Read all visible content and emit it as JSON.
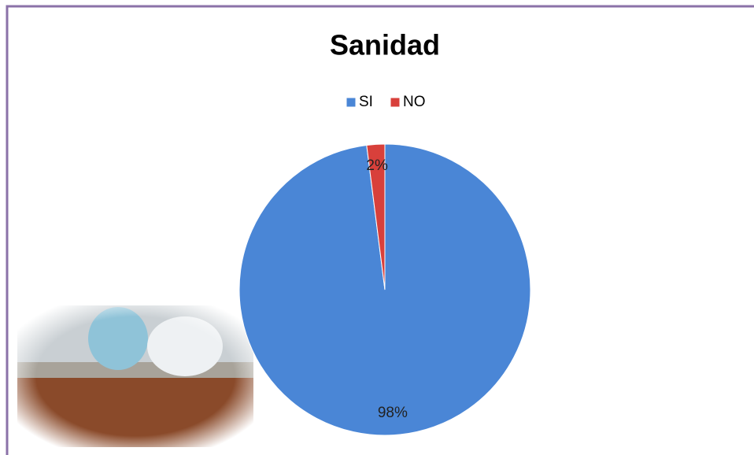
{
  "chart_data": {
    "type": "pie",
    "title": "Sanidad",
    "categories": [
      "SI",
      "NO"
    ],
    "values": [
      98,
      2
    ],
    "value_labels": [
      "98%",
      "2%"
    ],
    "colors": [
      "#4a86d6",
      "#d8403b"
    ],
    "legend": "top"
  }
}
